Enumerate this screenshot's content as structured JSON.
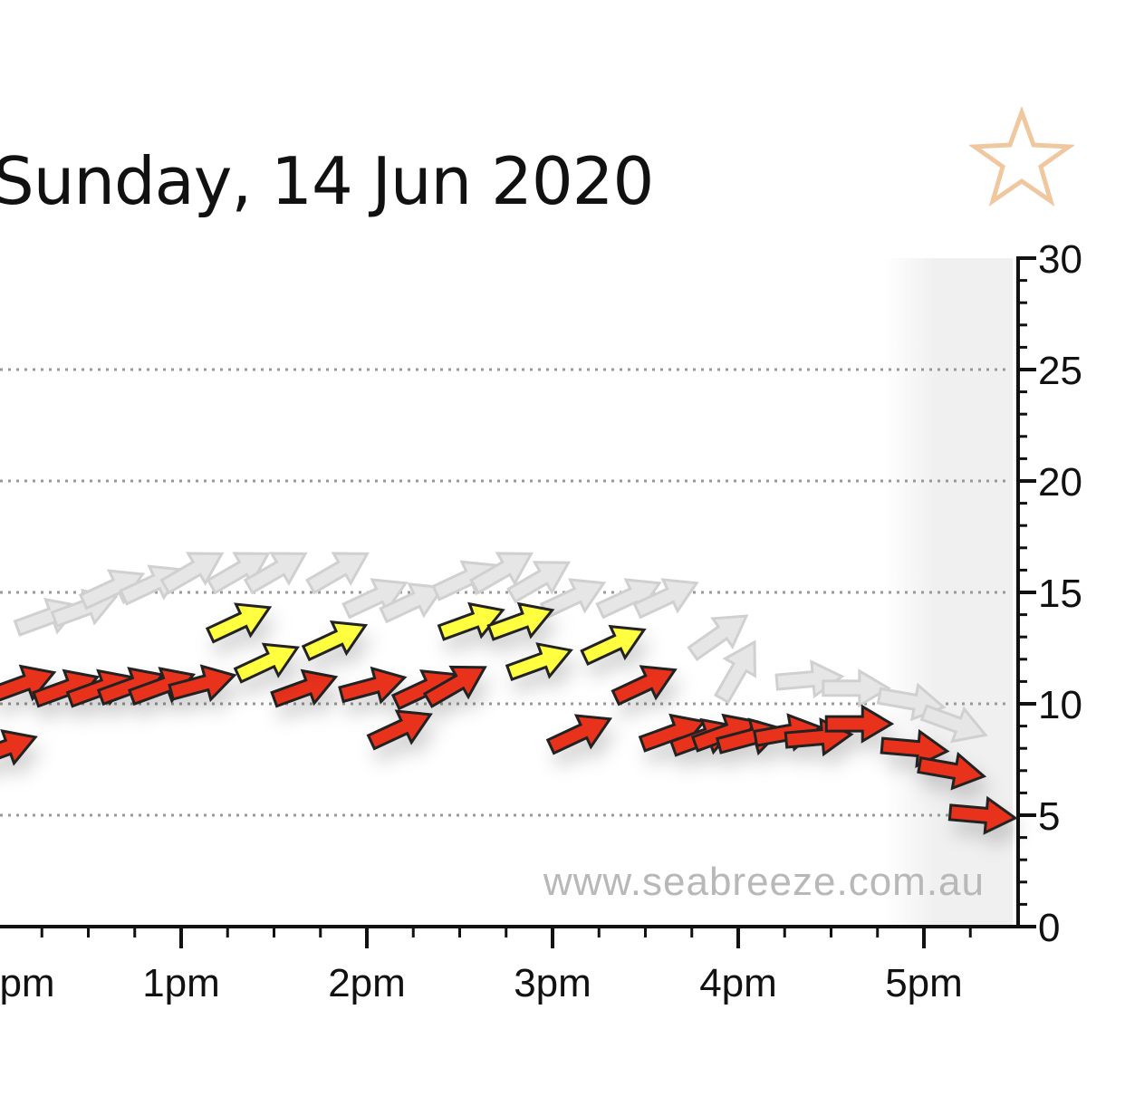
{
  "header": {
    "title": "Sunday, 14 Jun 2020",
    "favourite_icon": "star-outline-icon"
  },
  "watermark": "www.seabreeze.com.au",
  "colors": {
    "wind": "#e8321e",
    "highlight": "#ffff40",
    "gust": "#e6e6e6",
    "star": "#f0c8a0"
  },
  "chart_data": {
    "type": "scatter",
    "marker": "direction-arrow",
    "title": "Sunday, 14 Jun 2020",
    "xlabel": "",
    "ylabel": "",
    "xlim": [
      "12:00",
      "17:27"
    ],
    "ylim": [
      0,
      30
    ],
    "x_ticks": [
      "1pm",
      "2pm",
      "3pm",
      "4pm",
      "5pm"
    ],
    "x_tick_partial": "pm",
    "y_ticks": [
      0,
      5,
      10,
      15,
      20,
      25,
      30
    ],
    "grid": "horizontal dotted",
    "series": [
      {
        "key": "gust",
        "color": "#e6e6e6",
        "points": [
          {
            "t": "12:17",
            "v": 13.9,
            "dir": 20
          },
          {
            "t": "12:29",
            "v": 14.3,
            "dir": 20
          },
          {
            "t": "12:38",
            "v": 15.2,
            "dir": 25
          },
          {
            "t": "12:51",
            "v": 15.4,
            "dir": 25
          },
          {
            "t": "13:04",
            "v": 16.0,
            "dir": 30
          },
          {
            "t": "13:19",
            "v": 16.0,
            "dir": 30
          },
          {
            "t": "13:31",
            "v": 16.0,
            "dir": 30
          },
          {
            "t": "13:51",
            "v": 16.0,
            "dir": 30
          },
          {
            "t": "14:03",
            "v": 14.8,
            "dir": 25
          },
          {
            "t": "14:15",
            "v": 14.6,
            "dir": 25
          },
          {
            "t": "14:32",
            "v": 15.6,
            "dir": 25
          },
          {
            "t": "14:44",
            "v": 16.0,
            "dir": 30
          },
          {
            "t": "14:56",
            "v": 15.6,
            "dir": 30
          },
          {
            "t": "15:07",
            "v": 14.8,
            "dir": 25
          },
          {
            "t": "15:25",
            "v": 14.8,
            "dir": 25
          },
          {
            "t": "15:37",
            "v": 14.8,
            "dir": 25
          },
          {
            "t": "15:54",
            "v": 13.1,
            "dir": 35
          },
          {
            "t": "16:00",
            "v": 11.5,
            "dir": 60
          },
          {
            "t": "16:23",
            "v": 11.1,
            "dir": 5
          },
          {
            "t": "16:38",
            "v": 10.7,
            "dir": 0
          },
          {
            "t": "16:56",
            "v": 10.1,
            "dir": -10
          },
          {
            "t": "17:10",
            "v": 9.1,
            "dir": -20
          }
        ]
      },
      {
        "key": "wind",
        "color": "#e8321e",
        "points": [
          {
            "t": "12:03",
            "v": 8.0,
            "dir": 20
          },
          {
            "t": "12:09",
            "v": 10.9,
            "dir": 20
          },
          {
            "t": "12:23",
            "v": 10.7,
            "dir": 20
          },
          {
            "t": "12:34",
            "v": 10.7,
            "dir": 20
          },
          {
            "t": "12:44",
            "v": 10.8,
            "dir": 20
          },
          {
            "t": "12:54",
            "v": 10.8,
            "dir": 20
          },
          {
            "t": "13:07",
            "v": 10.9,
            "dir": 15
          },
          {
            "t": "13:40",
            "v": 10.7,
            "dir": 20
          },
          {
            "t": "14:02",
            "v": 10.8,
            "dir": 15
          },
          {
            "t": "14:11",
            "v": 8.9,
            "dir": 25
          },
          {
            "t": "14:19",
            "v": 10.7,
            "dir": 25
          },
          {
            "t": "14:29",
            "v": 10.9,
            "dir": 30
          },
          {
            "t": "15:09",
            "v": 8.7,
            "dir": 25
          },
          {
            "t": "15:30",
            "v": 10.9,
            "dir": 25
          },
          {
            "t": "15:39",
            "v": 8.7,
            "dir": 20
          },
          {
            "t": "15:49",
            "v": 8.5,
            "dir": 20
          },
          {
            "t": "15:56",
            "v": 8.7,
            "dir": 20
          },
          {
            "t": "16:04",
            "v": 8.5,
            "dir": 15
          },
          {
            "t": "16:16",
            "v": 8.7,
            "dir": 10
          },
          {
            "t": "16:26",
            "v": 8.5,
            "dir": 5
          },
          {
            "t": "16:39",
            "v": 9.1,
            "dir": 0
          },
          {
            "t": "16:57",
            "v": 8.0,
            "dir": -5
          },
          {
            "t": "17:09",
            "v": 7.0,
            "dir": -10
          },
          {
            "t": "17:19",
            "v": 5.0,
            "dir": -5
          }
        ]
      },
      {
        "key": "highlight",
        "color": "#ffff40",
        "points": [
          {
            "t": "13:19",
            "v": 13.7,
            "dir": 25
          },
          {
            "t": "13:28",
            "v": 11.9,
            "dir": 25
          },
          {
            "t": "13:50",
            "v": 12.9,
            "dir": 25
          },
          {
            "t": "14:34",
            "v": 13.7,
            "dir": 20
          },
          {
            "t": "14:50",
            "v": 13.7,
            "dir": 20
          },
          {
            "t": "14:56",
            "v": 11.9,
            "dir": 20
          },
          {
            "t": "15:20",
            "v": 12.7,
            "dir": 25
          }
        ]
      }
    ]
  }
}
